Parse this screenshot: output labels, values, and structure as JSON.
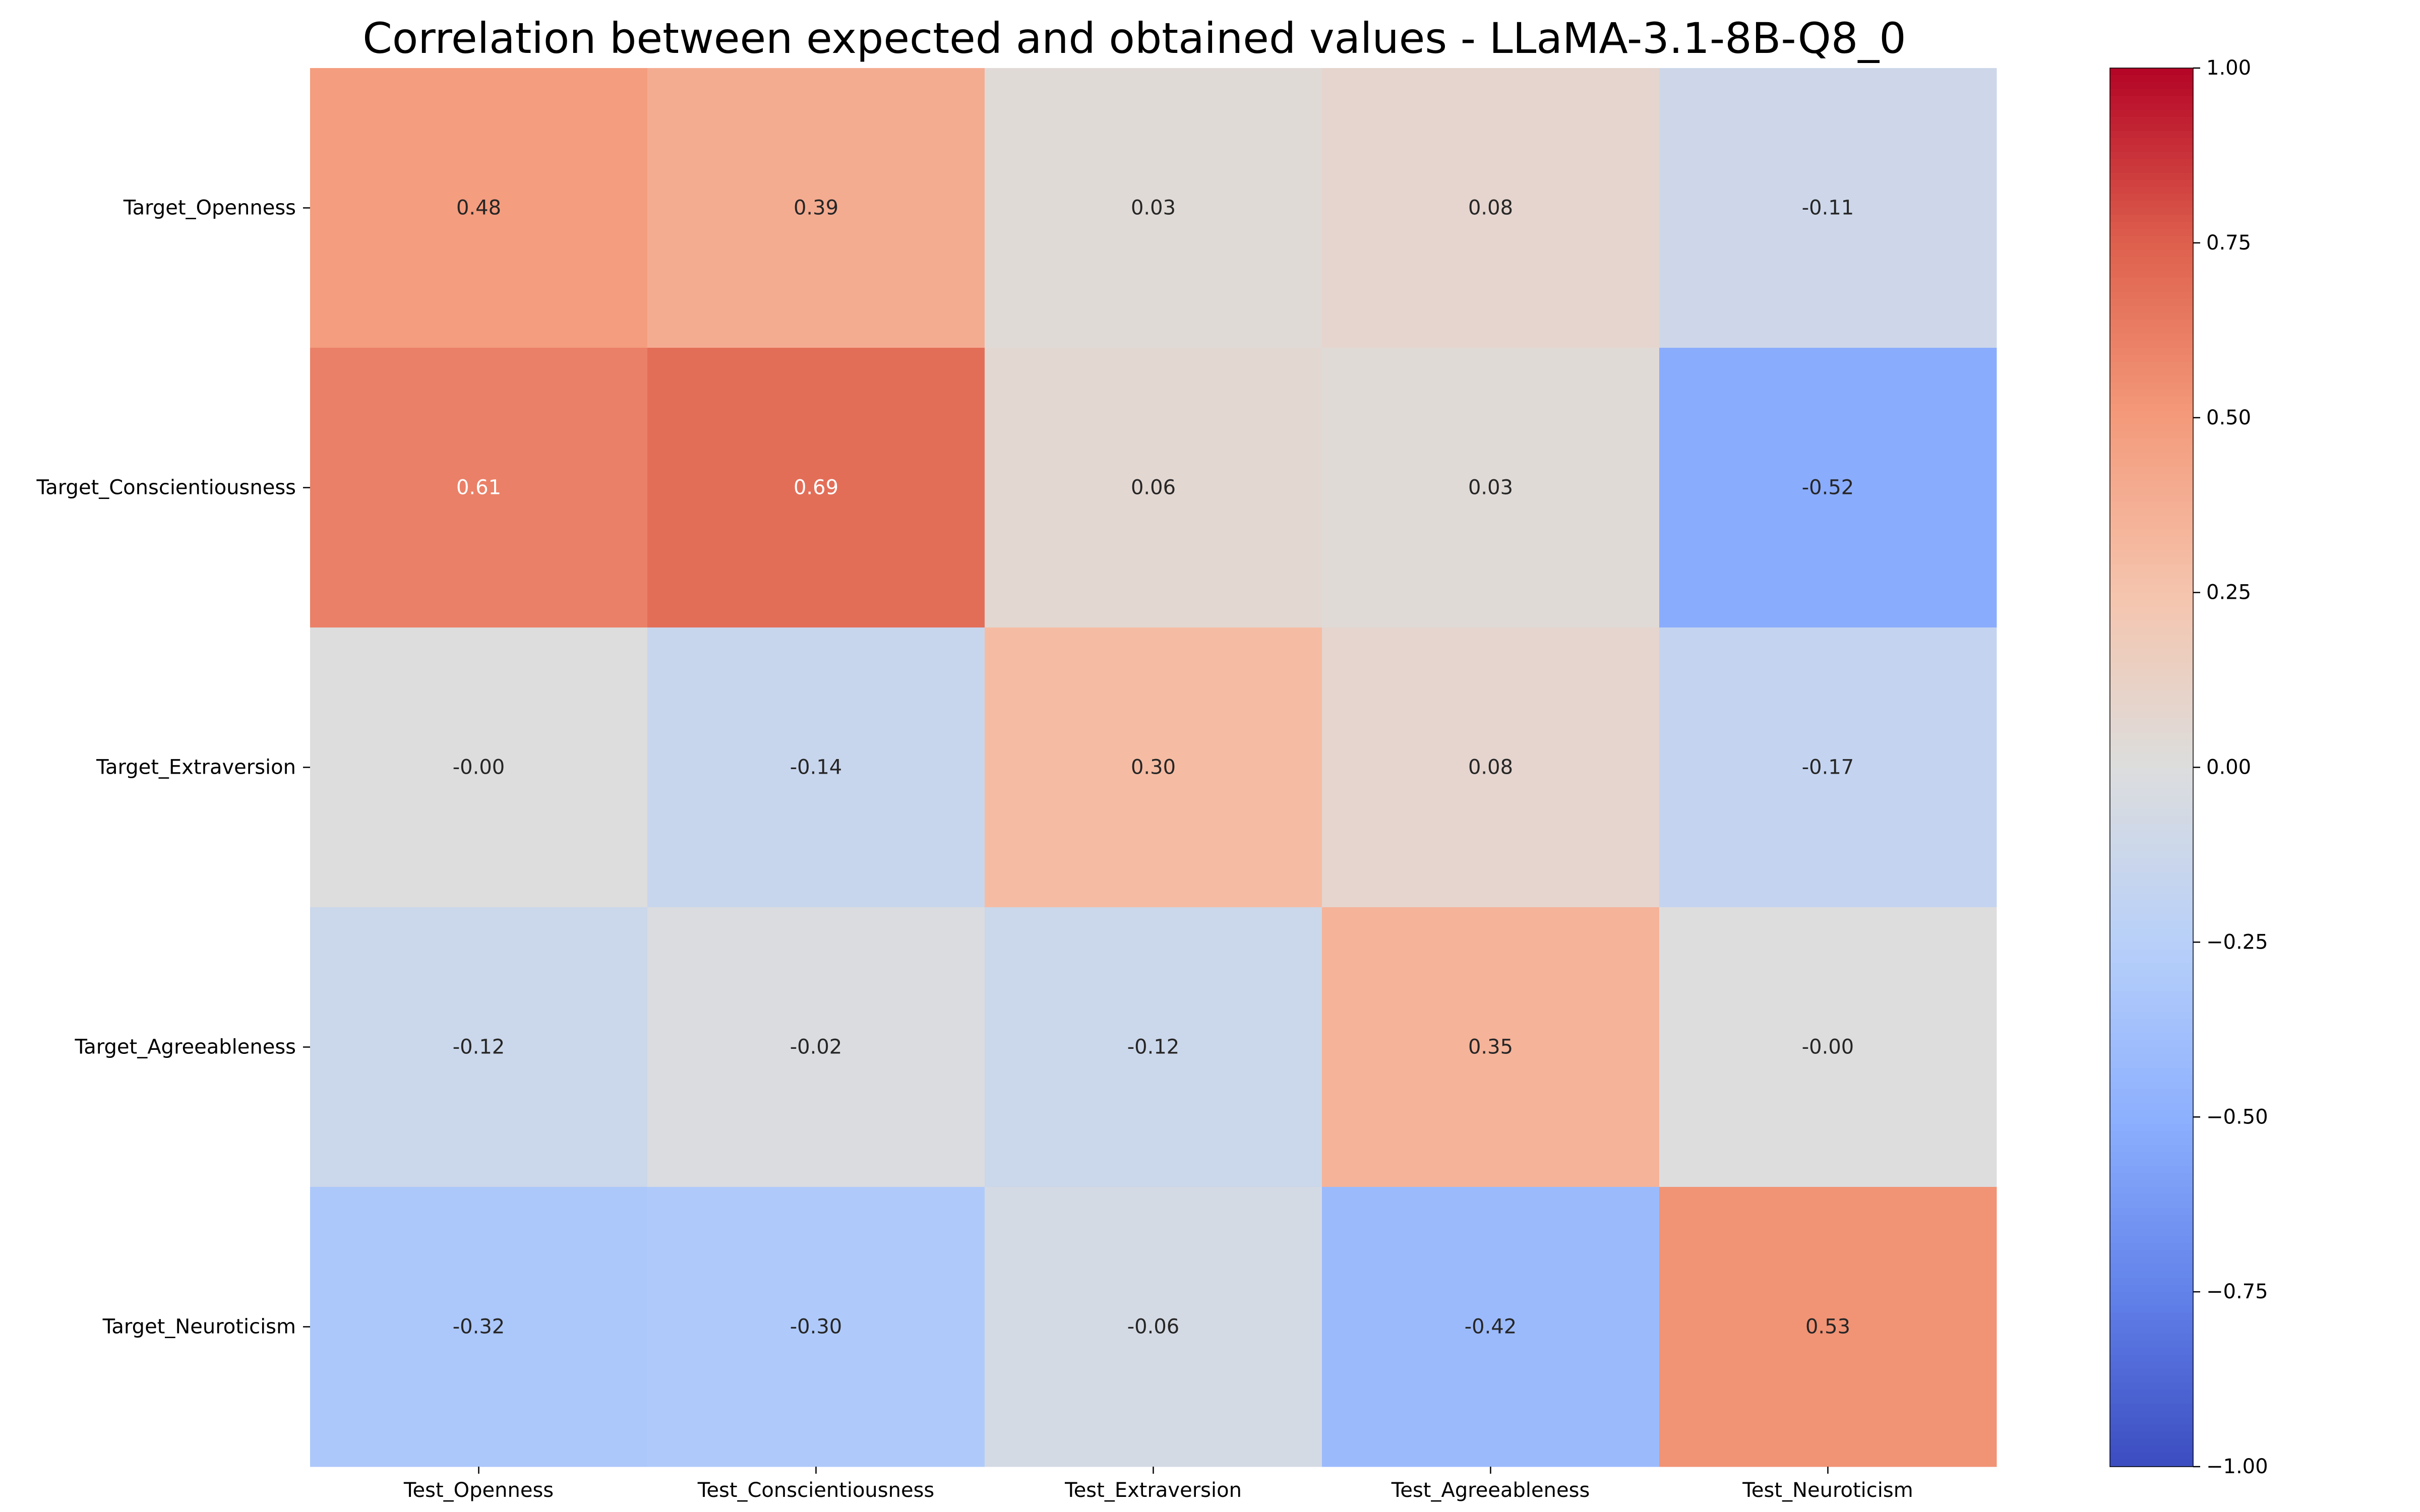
{
  "chart_data": {
    "type": "heatmap",
    "title": "Correlation between expected and obtained values - LLaMA-3.1-8B-Q8_0",
    "xlabel": "",
    "ylabel": "",
    "x_categories": [
      "Test_Openness",
      "Test_Conscientiousness",
      "Test_Extraversion",
      "Test_Agreeableness",
      "Test_Neuroticism"
    ],
    "y_categories": [
      "Target_Openness",
      "Target_Conscientiousness",
      "Target_Extraversion",
      "Target_Agreeableness",
      "Target_Neuroticism"
    ],
    "values": [
      [
        0.48,
        0.39,
        0.03,
        0.08,
        -0.11
      ],
      [
        0.61,
        0.69,
        0.06,
        0.03,
        -0.52
      ],
      [
        -0.0,
        -0.14,
        0.3,
        0.08,
        -0.17
      ],
      [
        -0.12,
        -0.02,
        -0.12,
        0.35,
        -0.0
      ],
      [
        -0.32,
        -0.3,
        -0.06,
        -0.42,
        0.53
      ]
    ],
    "cell_labels": [
      [
        "0.48",
        "0.39",
        "0.03",
        "0.08",
        "-0.11"
      ],
      [
        "0.61",
        "0.69",
        "0.06",
        "0.03",
        "-0.52"
      ],
      [
        "-0.00",
        "-0.14",
        "0.30",
        "0.08",
        "-0.17"
      ],
      [
        "-0.12",
        "-0.02",
        "-0.12",
        "0.35",
        "-0.00"
      ],
      [
        "-0.32",
        "-0.30",
        "-0.06",
        "-0.42",
        "0.53"
      ]
    ],
    "colorscale": "coolwarm",
    "vmin": -1,
    "vmax": 1,
    "colorbar_ticks": [
      1.0,
      0.75,
      0.5,
      0.25,
      0.0,
      -0.25,
      -0.5,
      -0.75,
      -1.0
    ],
    "colorbar_tick_labels": [
      "1.00",
      "0.75",
      "0.50",
      "0.25",
      "0.00",
      "−0.25",
      "−0.50",
      "−0.75",
      "−1.00"
    ],
    "grid": false,
    "legend": "colorbar-right"
  }
}
